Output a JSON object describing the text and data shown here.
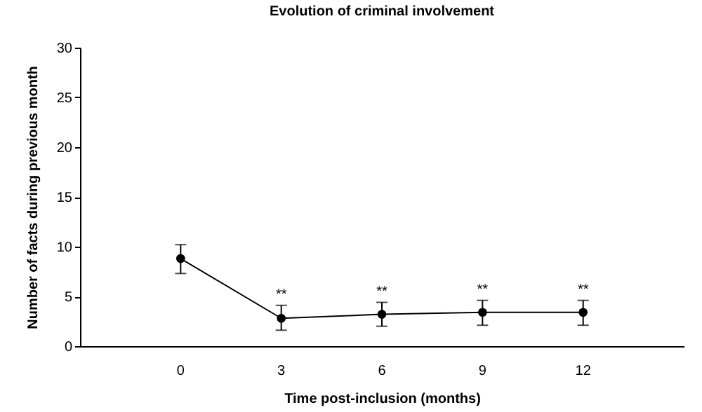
{
  "chart_data": {
    "type": "line",
    "title": "Evolution of criminal involvement",
    "xlabel": "Time post-inclusion (months)",
    "ylabel": "Number of facts during previous month",
    "categories": [
      "0",
      "3",
      "6",
      "9",
      "12"
    ],
    "values": [
      8.8,
      2.8,
      3.2,
      3.4,
      3.4
    ],
    "errors": [
      [
        7.3,
        10.2
      ],
      [
        1.6,
        4.1
      ],
      [
        2.0,
        4.4
      ],
      [
        2.1,
        4.6
      ],
      [
        2.1,
        4.6
      ]
    ],
    "color": "#000000",
    "marker": "circle",
    "line_style": "solid",
    "grid": false,
    "ylim": [
      0,
      30
    ],
    "yticks": [
      0,
      5,
      10,
      15,
      20,
      25,
      30
    ],
    "annotations": [
      {
        "text": "**",
        "x": "3",
        "y": 4.5
      },
      {
        "text": "**",
        "x": "6",
        "y": 4.8
      },
      {
        "text": "**",
        "x": "9",
        "y": 5.0
      },
      {
        "text": "**",
        "x": "12",
        "y": 5.0
      }
    ]
  }
}
